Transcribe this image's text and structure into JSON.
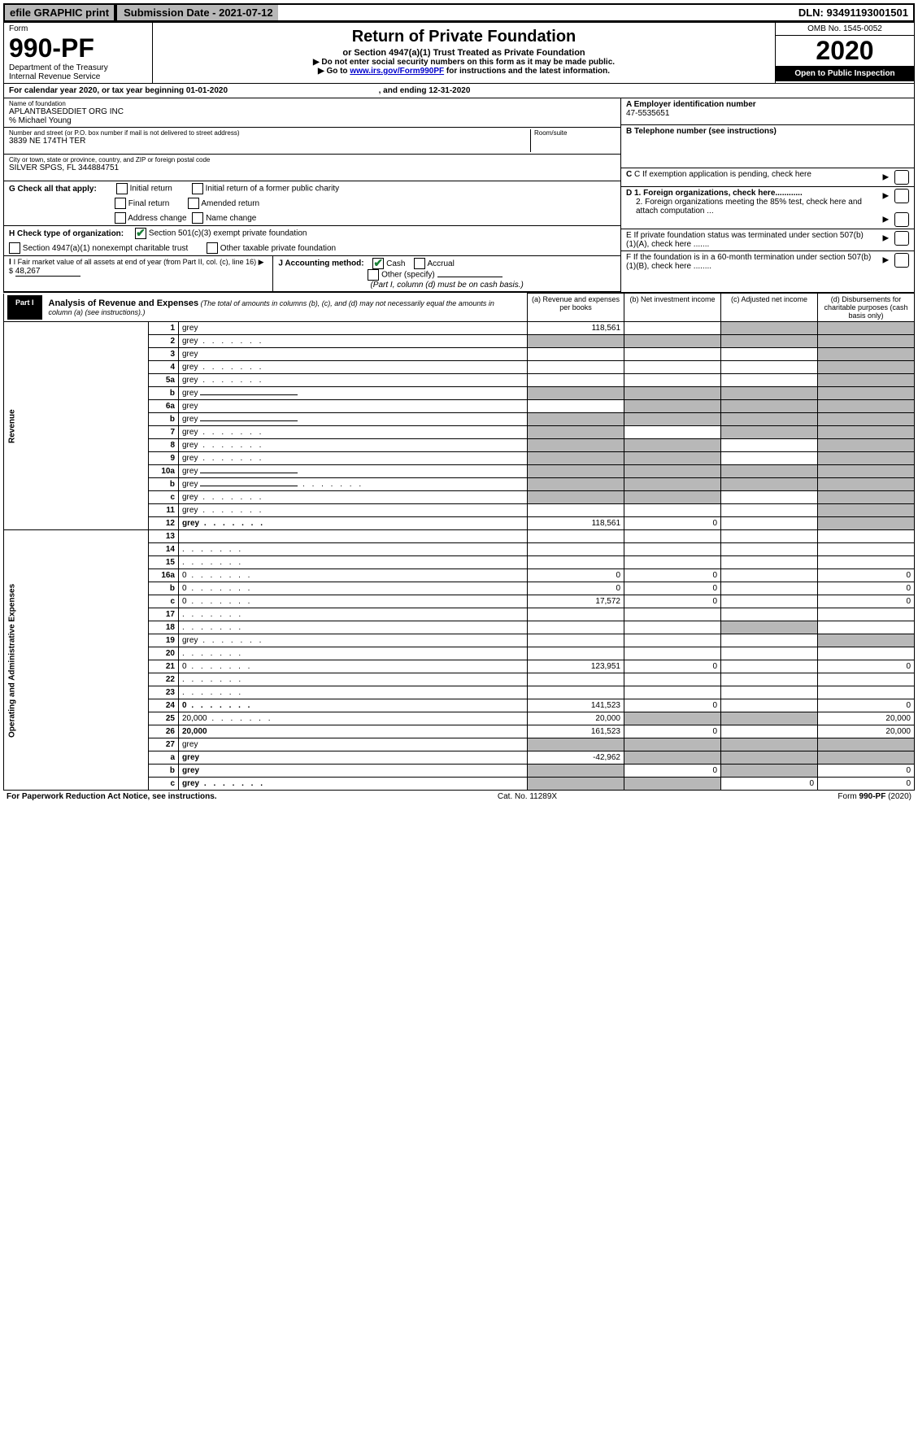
{
  "top": {
    "efile": "efile GRAPHIC print",
    "sub_label": "Submission Date - 2021-07-12",
    "dln": "DLN: 93491193001501"
  },
  "header": {
    "form_word": "Form",
    "form_no": "990-PF",
    "dept": "Department of the Treasury",
    "irs": "Internal Revenue Service",
    "title": "Return of Private Foundation",
    "subtitle": "or Section 4947(a)(1) Trust Treated as Private Foundation",
    "note1": "▶ Do not enter social security numbers on this form as it may be made public.",
    "note2_pre": "▶ Go to ",
    "note2_link": "www.irs.gov/Form990PF",
    "note2_post": " for instructions and the latest information.",
    "omb": "OMB No. 1545-0052",
    "year": "2020",
    "open": "Open to Public Inspection"
  },
  "cal": {
    "text_pre": "For calendar year 2020, or tax year beginning ",
    "begin": "01-01-2020",
    "mid": " , and ending ",
    "end": "12-31-2020"
  },
  "foundation": {
    "name_label": "Name of foundation",
    "name": "APLANTBASEDDIET ORG INC",
    "co": "% Michael Young",
    "addr_label": "Number and street (or P.O. box number if mail is not delivered to street address)",
    "addr": "3839 NE 174TH TER",
    "room_label": "Room/suite",
    "city_label": "City or town, state or province, country, and ZIP or foreign postal code",
    "city": "SILVER SPGS, FL  344884751"
  },
  "right": {
    "a_label": "A Employer identification number",
    "a_val": "47-5535651",
    "b_label": "B Telephone number (see instructions)",
    "c_label": "C If exemption application is pending, check here",
    "d1": "D 1. Foreign organizations, check here............",
    "d2": "2. Foreign organizations meeting the 85% test, check here and attach computation ...",
    "e": "E  If private foundation status was terminated under section 507(b)(1)(A), check here .......",
    "f": "F  If the foundation is in a 60-month termination under section 507(b)(1)(B), check here ........"
  },
  "g": {
    "label": "G Check all that apply:",
    "initial": "Initial return",
    "ipc": "Initial return of a former public charity",
    "final": "Final return",
    "amended": "Amended return",
    "addr": "Address change",
    "name": "Name change"
  },
  "h": {
    "label": "H Check type of organization:",
    "s501": "Section 501(c)(3) exempt private foundation",
    "s4947": "Section 4947(a)(1) nonexempt charitable trust",
    "other": "Other taxable private foundation"
  },
  "i": {
    "label": "I Fair market value of all assets at end of year (from Part II, col. (c), line 16) ▶ $",
    "val": "48,267"
  },
  "j": {
    "label": "J Accounting method:",
    "cash": "Cash",
    "accrual": "Accrual",
    "other": "Other (specify)",
    "note": "(Part I, column (d) must be on cash basis.)"
  },
  "part1": {
    "tab": "Part I",
    "title": "Analysis of Revenue and Expenses",
    "note": "(The total of amounts in columns (b), (c), and (d) may not necessarily equal the amounts in column (a) (see instructions).)",
    "col_a": "(a) Revenue and expenses per books",
    "col_b": "(b) Net investment income",
    "col_c": "(c) Adjusted net income",
    "col_d": "(d) Disbursements for charitable purposes (cash basis only)"
  },
  "sections": {
    "revenue": "Revenue",
    "expenses": "Operating and Administrative Expenses"
  },
  "rows": [
    {
      "n": "1",
      "d": "grey",
      "a": "118,561",
      "b": "",
      "c": "grey"
    },
    {
      "n": "2",
      "d": "grey",
      "a": "grey",
      "b": "grey",
      "c": "grey",
      "dots": true
    },
    {
      "n": "3",
      "d": "grey",
      "a": "",
      "b": "",
      "c": ""
    },
    {
      "n": "4",
      "d": "grey",
      "a": "",
      "b": "",
      "c": "",
      "dots": true
    },
    {
      "n": "5a",
      "d": "grey",
      "a": "",
      "b": "",
      "c": "",
      "dots": true
    },
    {
      "n": "b",
      "d": "grey",
      "a": "grey",
      "b": "grey",
      "c": "grey",
      "ul": true
    },
    {
      "n": "6a",
      "d": "grey",
      "a": "",
      "b": "grey",
      "c": "grey"
    },
    {
      "n": "b",
      "d": "grey",
      "a": "grey",
      "b": "grey",
      "c": "grey",
      "ul": true
    },
    {
      "n": "7",
      "d": "grey",
      "a": "grey",
      "b": "",
      "c": "grey",
      "dots": true
    },
    {
      "n": "8",
      "d": "grey",
      "a": "grey",
      "b": "grey",
      "c": "",
      "dots": true
    },
    {
      "n": "9",
      "d": "grey",
      "a": "grey",
      "b": "grey",
      "c": "",
      "dots": true
    },
    {
      "n": "10a",
      "d": "grey",
      "a": "grey",
      "b": "grey",
      "c": "grey",
      "ul": true
    },
    {
      "n": "b",
      "d": "grey",
      "a": "grey",
      "b": "grey",
      "c": "grey",
      "dots": true,
      "ul": true
    },
    {
      "n": "c",
      "d": "grey",
      "a": "grey",
      "b": "grey",
      "c": "",
      "dots": true
    },
    {
      "n": "11",
      "d": "grey",
      "a": "",
      "b": "",
      "c": "",
      "dots": true
    },
    {
      "n": "12",
      "d": "grey",
      "a": "118,561",
      "b": "0",
      "c": "",
      "bold": true,
      "dots": true
    }
  ],
  "exp_rows": [
    {
      "n": "13",
      "d": "",
      "a": "",
      "b": "",
      "c": ""
    },
    {
      "n": "14",
      "d": "",
      "a": "",
      "b": "",
      "c": "",
      "dots": true
    },
    {
      "n": "15",
      "d": "",
      "a": "",
      "b": "",
      "c": "",
      "dots": true
    },
    {
      "n": "16a",
      "d": "0",
      "a": "0",
      "b": "0",
      "c": "",
      "dots": true
    },
    {
      "n": "b",
      "d": "0",
      "a": "0",
      "b": "0",
      "c": "",
      "dots": true
    },
    {
      "n": "c",
      "d": "0",
      "a": "17,572",
      "b": "0",
      "c": "",
      "dots": true
    },
    {
      "n": "17",
      "d": "",
      "a": "",
      "b": "",
      "c": "",
      "dots": true
    },
    {
      "n": "18",
      "d": "",
      "a": "",
      "b": "",
      "c": "grey",
      "dots": true
    },
    {
      "n": "19",
      "d": "grey",
      "a": "",
      "b": "",
      "c": "",
      "dots": true
    },
    {
      "n": "20",
      "d": "",
      "a": "",
      "b": "",
      "c": "",
      "dots": true
    },
    {
      "n": "21",
      "d": "0",
      "a": "123,951",
      "b": "0",
      "c": "",
      "dots": true
    },
    {
      "n": "22",
      "d": "",
      "a": "",
      "b": "",
      "c": "",
      "dots": true
    },
    {
      "n": "23",
      "d": "",
      "a": "",
      "b": "",
      "c": "",
      "dots": true
    },
    {
      "n": "24",
      "d": "0",
      "a": "141,523",
      "b": "0",
      "c": "",
      "bold": true,
      "dots": true
    },
    {
      "n": "25",
      "d": "20,000",
      "a": "20,000",
      "b": "grey",
      "c": "grey",
      "dots": true
    },
    {
      "n": "26",
      "d": "20,000",
      "a": "161,523",
      "b": "0",
      "c": "",
      "bold": true
    },
    {
      "n": "27",
      "d": "grey",
      "a": "grey",
      "b": "grey",
      "c": "grey"
    },
    {
      "n": "a",
      "d": "grey",
      "a": "-42,962",
      "b": "grey",
      "c": "grey",
      "bold": true
    },
    {
      "n": "b",
      "d": "grey",
      "a": "grey",
      "b": "0",
      "c": "grey",
      "bold": true
    },
    {
      "n": "c",
      "d": "grey",
      "a": "grey",
      "b": "grey",
      "c": "0",
      "bold": true,
      "dots": true
    }
  ],
  "footer": {
    "left": "For Paperwork Reduction Act Notice, see instructions.",
    "mid": "Cat. No. 11289X",
    "right": "Form 990-PF (2020)"
  }
}
